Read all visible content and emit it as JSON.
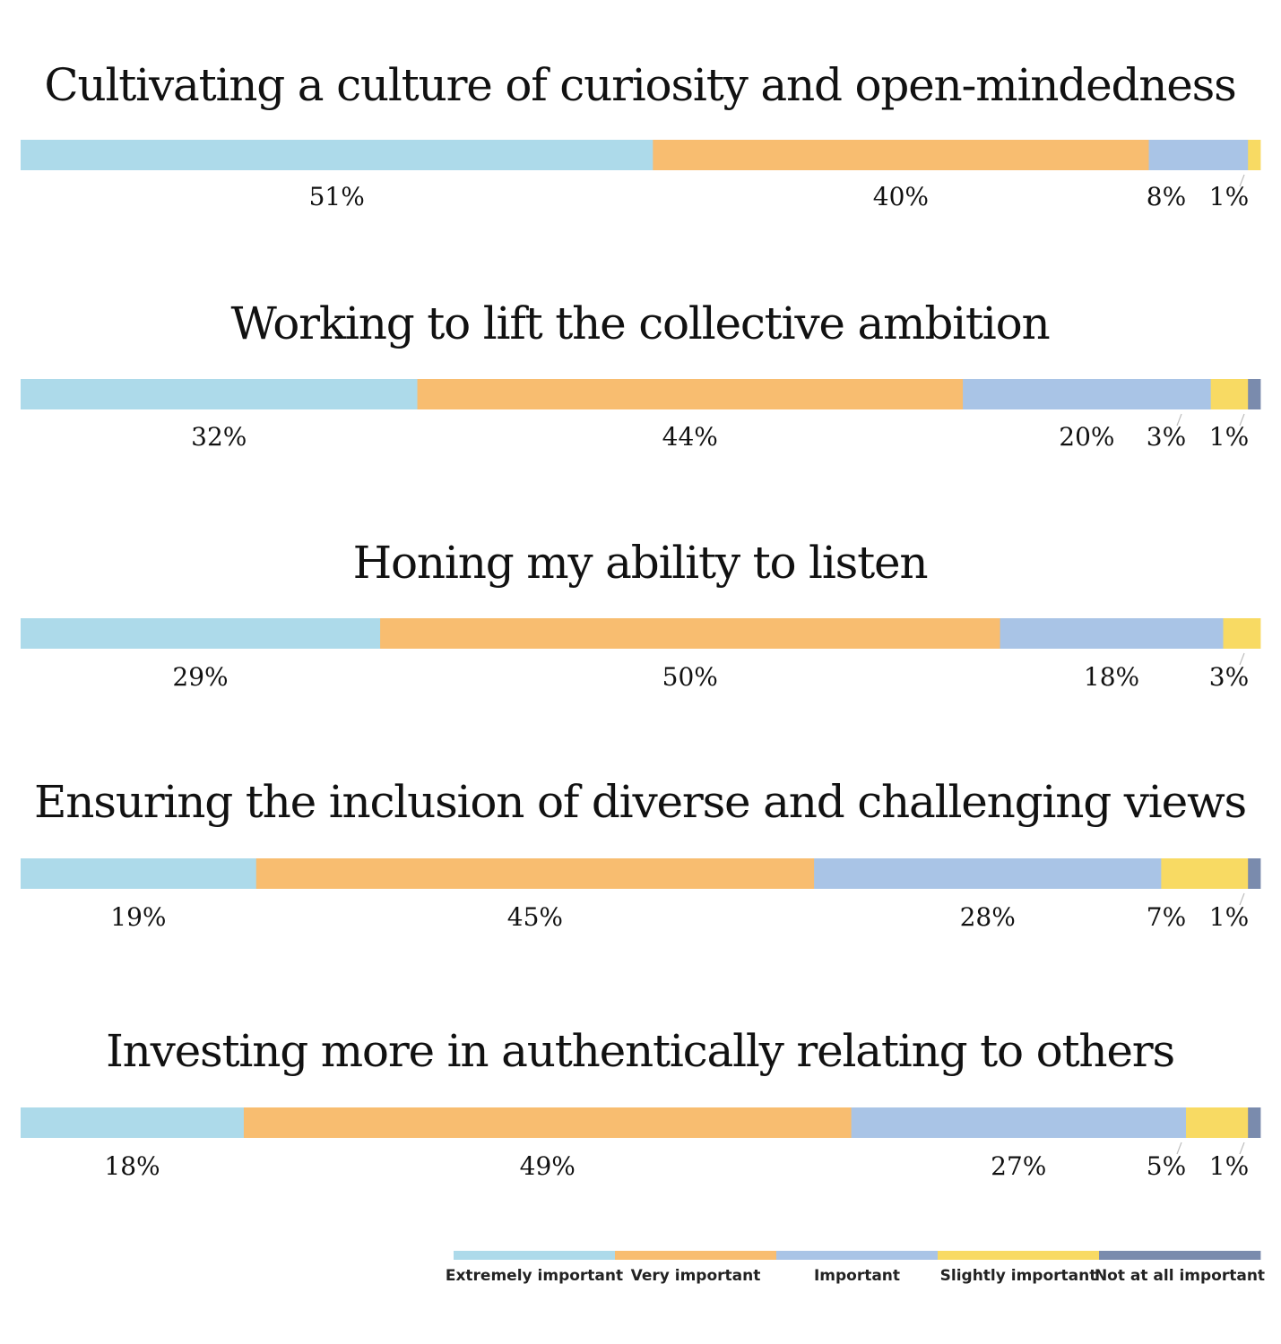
{
  "chart_data": {
    "type": "bar",
    "stacked": true,
    "orientation": "horizontal",
    "unit": "%",
    "categories": [
      "Extremely important",
      "Very important",
      "Important",
      "Slightly important",
      "Not at all important"
    ],
    "colors": [
      "#ADDAEA",
      "#F8BD70",
      "#A9C4E6",
      "#F8DA63",
      "#7A8BAD"
    ],
    "groups": [
      {
        "title": "Cultivating a culture of curiosity and open-mindedness",
        "values": [
          51,
          40,
          8,
          1,
          0
        ],
        "labels": [
          "51%",
          "40%",
          "8%",
          "1%",
          ""
        ]
      },
      {
        "title": "Working to lift the collective ambition",
        "values": [
          32,
          44,
          20,
          3,
          1
        ],
        "labels": [
          "32%",
          "44%",
          "20%",
          "3%",
          "1%"
        ]
      },
      {
        "title": "Honing my ability to listen",
        "values": [
          29,
          50,
          18,
          3,
          0
        ],
        "labels": [
          "29%",
          "50%",
          "18%",
          "3%",
          ""
        ]
      },
      {
        "title": "Ensuring the inclusion of diverse and challenging views",
        "values": [
          19,
          45,
          28,
          7,
          1
        ],
        "labels": [
          "19%",
          "45%",
          "28%",
          "7%",
          "1%"
        ]
      },
      {
        "title": "Investing more in authentically relating to others",
        "values": [
          18,
          49,
          27,
          5,
          1
        ],
        "labels": [
          "18%",
          "49%",
          "27%",
          "5%",
          "1%"
        ]
      }
    ],
    "legend": {
      "placement": "bottom-right",
      "items": [
        "Extremely important",
        "Very important",
        "Important",
        "Slightly important",
        "Not at all important"
      ]
    }
  }
}
